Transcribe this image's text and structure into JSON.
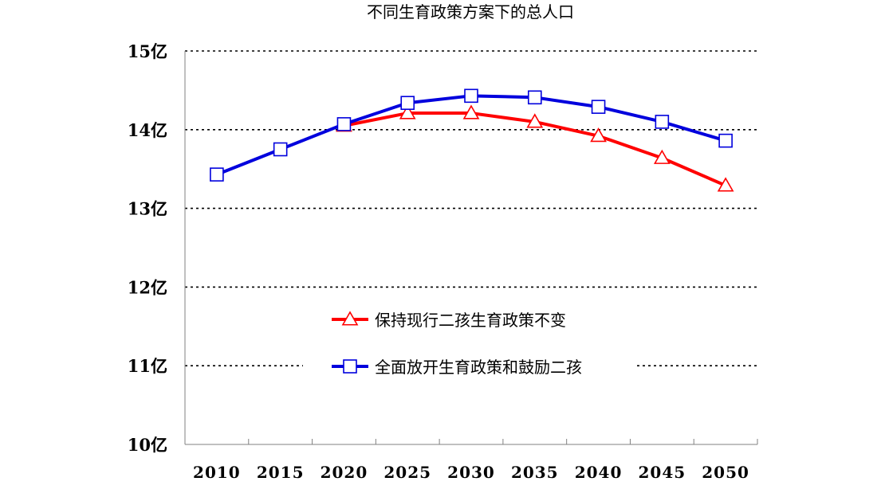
{
  "chart_data": {
    "type": "line",
    "title": "不同生育政策方案下的总人口",
    "categories": [
      "2010",
      "2015",
      "2020",
      "2025",
      "2030",
      "2035",
      "2040",
      "2045",
      "2050"
    ],
    "y_tick_labels": [
      "10亿",
      "11亿",
      "12亿",
      "13亿",
      "14亿",
      "15亿"
    ],
    "ylim": [
      10,
      15
    ],
    "y_unit": "亿",
    "grid": "horizontal dotted",
    "legend_position": "center",
    "series": [
      {
        "name": "保持现行二孩生育政策不变",
        "color": "#ff0000",
        "marker": "triangle",
        "values": [
          null,
          null,
          14.05,
          14.21,
          14.21,
          14.1,
          13.92,
          13.64,
          13.29
        ]
      },
      {
        "name": "全面放开生育政策和鼓励二孩",
        "color": "#0000dd",
        "marker": "square",
        "values": [
          13.43,
          13.75,
          14.07,
          14.34,
          14.43,
          14.41,
          14.29,
          14.1,
          13.86
        ]
      }
    ]
  }
}
